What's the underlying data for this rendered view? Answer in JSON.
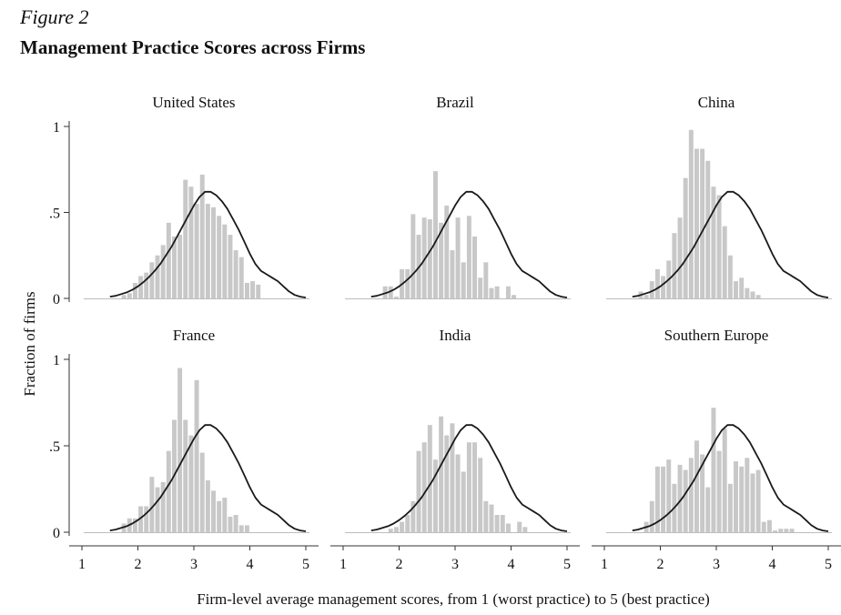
{
  "figure_label": "Figure 2",
  "figure_title": "Management Practice Scores across Firms",
  "colors": {
    "bar": "#c8c8c8",
    "density": "#1a1a1a",
    "axis": "#333333"
  },
  "chart_data": {
    "type": "bar",
    "title": "Management Practice Scores across Firms",
    "xlabel": "Firm-level average management scores, from 1 (worst practice) to 5 (best practice)",
    "ylabel": "Fraction of firms",
    "xlim": [
      1,
      5
    ],
    "ylim": [
      0,
      1
    ],
    "x_ticks": [
      1,
      2,
      3,
      4,
      5
    ],
    "y_ticks": [
      0,
      0.5,
      1
    ],
    "y_tick_labels": [
      "0",
      ".5",
      "1"
    ],
    "grid": false,
    "bin_width": 0.1,
    "bin_starts": [
      1.5,
      1.6,
      1.7,
      1.8,
      1.9,
      2.0,
      2.1,
      2.2,
      2.3,
      2.4,
      2.5,
      2.6,
      2.7,
      2.8,
      2.9,
      3.0,
      3.1,
      3.2,
      3.3,
      3.4,
      3.5,
      3.6,
      3.7,
      3.8,
      3.9,
      4.0,
      4.1,
      4.2,
      4.3,
      4.4,
      4.5,
      4.6,
      4.7,
      4.8,
      4.9
    ],
    "reference_density": {
      "x": [
        1.5,
        1.6,
        1.7,
        1.8,
        1.9,
        2.0,
        2.1,
        2.2,
        2.3,
        2.4,
        2.5,
        2.6,
        2.7,
        2.8,
        2.9,
        3.0,
        3.1,
        3.2,
        3.3,
        3.4,
        3.5,
        3.6,
        3.7,
        3.8,
        3.9,
        4.0,
        4.1,
        4.2,
        4.3,
        4.4,
        4.5,
        4.6,
        4.7,
        4.8,
        4.9,
        5.0
      ],
      "y": [
        0.01,
        0.015,
        0.025,
        0.035,
        0.05,
        0.07,
        0.095,
        0.125,
        0.16,
        0.2,
        0.25,
        0.3,
        0.36,
        0.42,
        0.48,
        0.54,
        0.59,
        0.62,
        0.62,
        0.6,
        0.565,
        0.52,
        0.46,
        0.4,
        0.33,
        0.26,
        0.2,
        0.16,
        0.14,
        0.12,
        0.1,
        0.07,
        0.04,
        0.02,
        0.01,
        0.005
      ]
    },
    "panels": [
      {
        "name": "United States",
        "values": [
          0,
          0,
          0.02,
          0.03,
          0.09,
          0.13,
          0.15,
          0.21,
          0.25,
          0.31,
          0.44,
          0.36,
          0.37,
          0.69,
          0.65,
          0.55,
          0.72,
          0.55,
          0.53,
          0.48,
          0.43,
          0.37,
          0.28,
          0.24,
          0.09,
          0.1,
          0.08,
          0,
          0,
          0,
          0,
          0,
          0,
          0,
          0
        ]
      },
      {
        "name": "Brazil",
        "values": [
          0,
          0,
          0.07,
          0.07,
          0.01,
          0.17,
          0.17,
          0.49,
          0.37,
          0.47,
          0.46,
          0.74,
          0.44,
          0.54,
          0.28,
          0.47,
          0.21,
          0.48,
          0.36,
          0.12,
          0.21,
          0.06,
          0.07,
          0,
          0.07,
          0.02,
          0,
          0,
          0,
          0,
          0,
          0,
          0,
          0,
          0
        ]
      },
      {
        "name": "China",
        "values": [
          0,
          0.04,
          0.02,
          0.1,
          0.17,
          0.13,
          0.22,
          0.38,
          0.47,
          0.7,
          0.98,
          0.87,
          0.87,
          0.8,
          0.65,
          0.6,
          0.42,
          0.25,
          0.1,
          0.12,
          0.06,
          0.04,
          0.02,
          0,
          0,
          0,
          0,
          0,
          0,
          0,
          0,
          0,
          0,
          0,
          0
        ]
      },
      {
        "name": "France",
        "values": [
          0,
          0,
          0.05,
          0.08,
          0.08,
          0.15,
          0.15,
          0.32,
          0.26,
          0.29,
          0.47,
          0.65,
          0.95,
          0.65,
          0.56,
          0.88,
          0.46,
          0.3,
          0.24,
          0.18,
          0.2,
          0.09,
          0.1,
          0.04,
          0.04,
          0,
          0,
          0,
          0,
          0,
          0,
          0,
          0,
          0,
          0
        ]
      },
      {
        "name": "India",
        "values": [
          0,
          0,
          0,
          0.02,
          0.03,
          0.06,
          0.1,
          0.18,
          0.47,
          0.52,
          0.62,
          0.42,
          0.67,
          0.56,
          0.63,
          0.45,
          0.35,
          0.52,
          0.52,
          0.43,
          0.18,
          0.16,
          0.1,
          0.1,
          0.05,
          0,
          0.06,
          0.03,
          0,
          0,
          0,
          0,
          0,
          0,
          0
        ]
      },
      {
        "name": "Southern Europe",
        "values": [
          0,
          0,
          0.06,
          0.18,
          0.38,
          0.38,
          0.42,
          0.28,
          0.39,
          0.36,
          0.43,
          0.53,
          0.45,
          0.26,
          0.72,
          0.47,
          0.6,
          0.28,
          0.41,
          0.38,
          0.43,
          0.34,
          0.36,
          0.06,
          0.07,
          0.01,
          0.02,
          0.02,
          0.02,
          0,
          0,
          0,
          0,
          0,
          0
        ]
      }
    ]
  }
}
